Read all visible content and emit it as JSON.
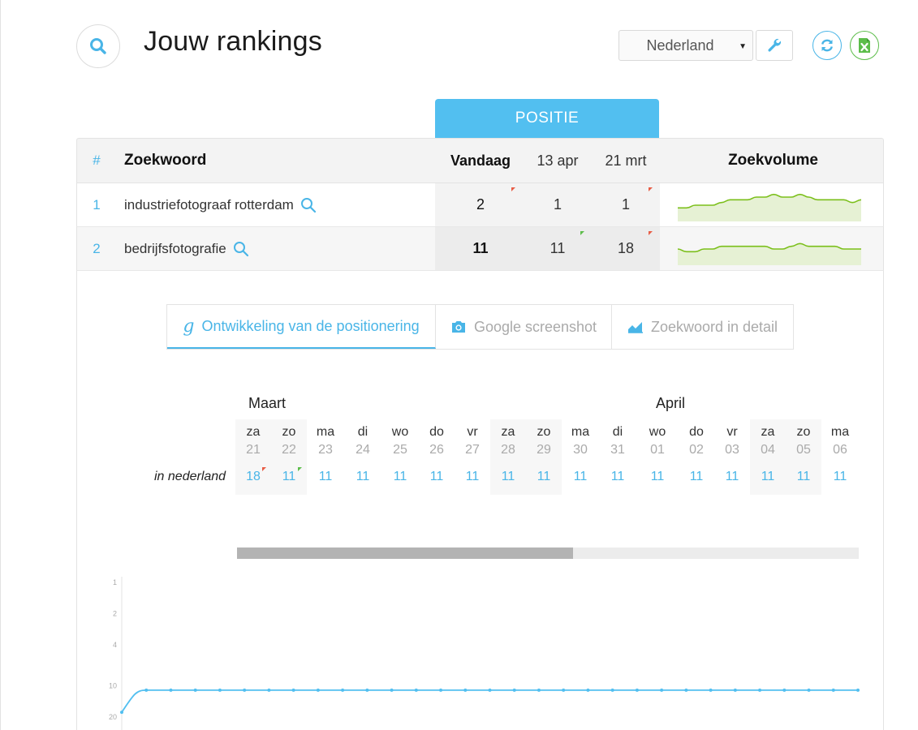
{
  "header": {
    "title": "Jouw rankings",
    "country": "Nederland"
  },
  "colors": {
    "accent": "#52bff0",
    "link": "#49b5e7",
    "excel": "#5cbd4a",
    "down_flag": "#e85c45",
    "up_flag": "#5cbd4a",
    "volume_line": "#7bbf1a",
    "volume_fill": "#e6f1d4"
  },
  "table": {
    "group_header": "POSITIE",
    "columns": {
      "num": "#",
      "keyword": "Zoekwoord",
      "today": "Vandaag",
      "date1": "13 apr",
      "date2": "21 mrt",
      "volume": "Zoekvolume"
    },
    "rows": [
      {
        "num": "1",
        "keyword": "industriefotograaf rotterdam",
        "today": "2",
        "date1": "1",
        "date2": "1",
        "today_flag": "down",
        "date2_flag": "down",
        "volume_trend": [
          5,
          5,
          6,
          6,
          6,
          7,
          8,
          8,
          8,
          9,
          9,
          10,
          9,
          9,
          10,
          9,
          8,
          8,
          8,
          8,
          7,
          8
        ]
      },
      {
        "num": "2",
        "keyword": "bedrijfsfotografie",
        "today": "11",
        "date1": "11",
        "date2": "18",
        "date1_flag": "up",
        "date2_flag": "down",
        "volume_trend": [
          6,
          5,
          5,
          6,
          6,
          7,
          7,
          7,
          7,
          7,
          7,
          6,
          6,
          7,
          8,
          7,
          7,
          7,
          7,
          6,
          6,
          6
        ]
      }
    ]
  },
  "tabs": [
    {
      "label": "Ontwikkeling van de positionering",
      "icon": "google-icon",
      "active": true
    },
    {
      "label": "Google screenshot",
      "icon": "camera-icon",
      "active": false
    },
    {
      "label": "Zoekwoord in detail",
      "icon": "area-chart-icon",
      "active": false
    }
  ],
  "calendar": {
    "months": [
      "Maart",
      "April"
    ],
    "row_label": "in nederland",
    "days": [
      {
        "dn": "za",
        "dd": "21",
        "pos": "18",
        "weekend": true,
        "flag": "down"
      },
      {
        "dn": "zo",
        "dd": "22",
        "pos": "11",
        "weekend": true,
        "flag": "up"
      },
      {
        "dn": "ma",
        "dd": "23",
        "pos": "11"
      },
      {
        "dn": "di",
        "dd": "24",
        "pos": "11"
      },
      {
        "dn": "wo",
        "dd": "25",
        "pos": "11"
      },
      {
        "dn": "do",
        "dd": "26",
        "pos": "11"
      },
      {
        "dn": "vr",
        "dd": "27",
        "pos": "11"
      },
      {
        "dn": "za",
        "dd": "28",
        "pos": "11",
        "weekend": true
      },
      {
        "dn": "zo",
        "dd": "29",
        "pos": "11",
        "weekend": true
      },
      {
        "dn": "ma",
        "dd": "30",
        "pos": "11"
      },
      {
        "dn": "di",
        "dd": "31",
        "pos": "11"
      },
      {
        "dn": "wo",
        "dd": "01",
        "pos": "11"
      },
      {
        "dn": "do",
        "dd": "02",
        "pos": "11"
      },
      {
        "dn": "vr",
        "dd": "03",
        "pos": "11"
      },
      {
        "dn": "za",
        "dd": "04",
        "pos": "11",
        "weekend": true
      },
      {
        "dn": "zo",
        "dd": "05",
        "pos": "11",
        "weekend": true
      },
      {
        "dn": "ma",
        "dd": "06",
        "pos": "11"
      }
    ],
    "scroll_fraction": 0.54
  },
  "chart_data": {
    "type": "line",
    "title": "",
    "xlabel": "",
    "ylabel": "",
    "y_ticks": [
      1,
      2,
      4,
      10,
      20
    ],
    "y_scale": "log-inverted",
    "ylim": [
      1,
      20
    ],
    "series": [
      {
        "values": [
          18,
          11,
          11,
          11,
          11,
          11,
          11,
          11,
          11,
          11,
          11,
          11,
          11,
          11,
          11,
          11,
          11,
          11,
          11,
          11,
          11,
          11,
          11,
          11,
          11,
          11,
          11,
          11,
          11,
          11,
          11
        ]
      }
    ]
  }
}
